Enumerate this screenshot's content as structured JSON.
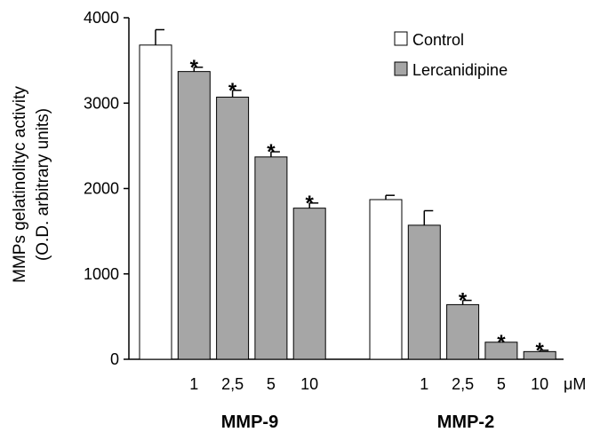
{
  "chart_data": {
    "type": "bar",
    "ylabel": "MMPs gelatinolityc activity",
    "ylabel2": "(O.D. arbitrary units)",
    "ylim": [
      0,
      4000
    ],
    "yticks": [
      "0",
      "1000",
      "2000",
      "3000",
      "4000"
    ],
    "unit": "μM",
    "legend": [
      {
        "label": "Control",
        "color": "#ffffff"
      },
      {
        "label": "Lercanidipine",
        "color": "#a6a6a6"
      }
    ],
    "groups": [
      {
        "name": "MMP-9",
        "bars": [
          {
            "category": "",
            "series": "Control",
            "value": 3680,
            "error": 180,
            "sig": ""
          },
          {
            "category": "1",
            "series": "Lercanidipine",
            "value": 3370,
            "error": 50,
            "sig": "*"
          },
          {
            "category": "2,5",
            "series": "Lercanidipine",
            "value": 3070,
            "error": 80,
            "sig": "*"
          },
          {
            "category": "5",
            "series": "Lercanidipine",
            "value": 2370,
            "error": 60,
            "sig": "*"
          },
          {
            "category": "10",
            "series": "Lercanidipine",
            "value": 1770,
            "error": 60,
            "sig": "*"
          }
        ]
      },
      {
        "name": "MMP-2",
        "bars": [
          {
            "category": "",
            "series": "Control",
            "value": 1870,
            "error": 50,
            "sig": ""
          },
          {
            "category": "1",
            "series": "Lercanidipine",
            "value": 1570,
            "error": 170,
            "sig": ""
          },
          {
            "category": "2,5",
            "series": "Lercanidipine",
            "value": 640,
            "error": 50,
            "sig": "*"
          },
          {
            "category": "5",
            "series": "Lercanidipine",
            "value": 200,
            "error": 0,
            "sig": "*"
          },
          {
            "category": "10",
            "series": "Lercanidipine",
            "value": 90,
            "error": 15,
            "sig": "*"
          }
        ]
      }
    ]
  }
}
